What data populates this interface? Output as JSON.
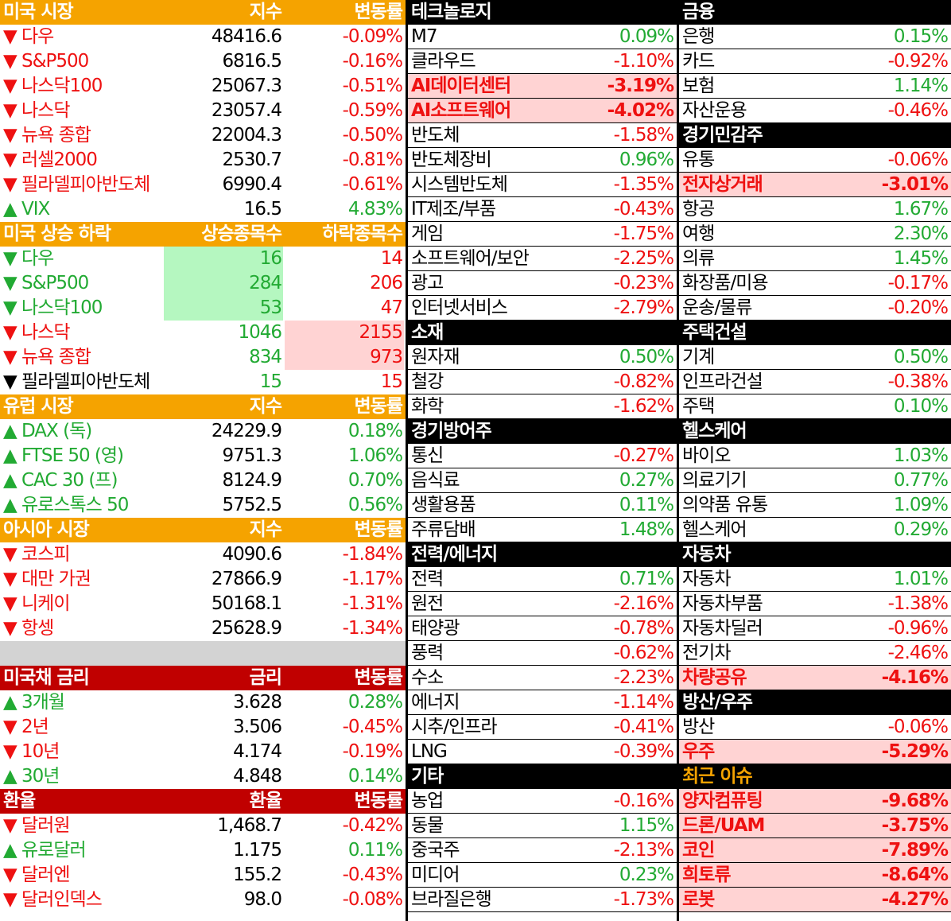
{
  "colors": {
    "up": "#22aa33",
    "down": "#ee1111",
    "orange_header": "#f5a300",
    "red_header": "#c00000",
    "highlight": "#ffd3d3",
    "green_cell": "#b5f7c0"
  },
  "left": [
    {
      "kind": "header",
      "style": "orange",
      "name": "미국 시장",
      "v1": "지수",
      "v2": "변동률"
    },
    {
      "kind": "row",
      "name": "▼ 다우",
      "v1": "48416.6",
      "v2": "-0.09%",
      "dir": "down"
    },
    {
      "kind": "row",
      "name": "▼ S&P500",
      "v1": "6816.5",
      "v2": "-0.16%",
      "dir": "down"
    },
    {
      "kind": "row",
      "name": "▼ 나스닥100",
      "v1": "25067.3",
      "v2": "-0.51%",
      "dir": "down"
    },
    {
      "kind": "row",
      "name": "▼ 나스닥",
      "v1": "23057.4",
      "v2": "-0.59%",
      "dir": "down"
    },
    {
      "kind": "row",
      "name": "▼ 뉴욕 종합",
      "v1": "22004.3",
      "v2": "-0.50%",
      "dir": "down"
    },
    {
      "kind": "row",
      "name": "▼ 러셀2000",
      "v1": "2530.7",
      "v2": "-0.81%",
      "dir": "down"
    },
    {
      "kind": "row",
      "name": "▼ 필라델피아반도체",
      "v1": "6990.4",
      "v2": "-0.61%",
      "dir": "down"
    },
    {
      "kind": "row",
      "name": "▲ VIX",
      "v1": "16.5",
      "v2": "4.83%",
      "dir": "up"
    },
    {
      "kind": "header",
      "style": "orange",
      "name": "미국 상승 하락",
      "v1": "상승종목수",
      "v2": "하락종목수"
    },
    {
      "kind": "breadth",
      "name": "▼ 다우",
      "v1": "16",
      "v2": "14",
      "dir": "up",
      "fill": "green"
    },
    {
      "kind": "breadth",
      "name": "▼ S&P500",
      "v1": "284",
      "v2": "206",
      "dir": "up",
      "fill": "green"
    },
    {
      "kind": "breadth",
      "name": "▼ 나스닥100",
      "v1": "53",
      "v2": "47",
      "dir": "up",
      "fill": "green"
    },
    {
      "kind": "breadth",
      "name": "▼ 나스닥",
      "v1": "1046",
      "v2": "2155",
      "dir": "down",
      "fill": "red"
    },
    {
      "kind": "breadth",
      "name": "▼ 뉴욕 종합",
      "v1": "834",
      "v2": "973",
      "dir": "down",
      "fill": "red"
    },
    {
      "kind": "breadth",
      "name": "▼ 필라델피아반도체",
      "v1": "15",
      "v2": "15",
      "dir": "flat",
      "fill": "none"
    },
    {
      "kind": "header",
      "style": "orange",
      "name": "유럽 시장",
      "v1": "지수",
      "v2": "변동률"
    },
    {
      "kind": "row",
      "name": "▲ DAX (독)",
      "v1": "24229.9",
      "v2": "0.18%",
      "dir": "up"
    },
    {
      "kind": "row",
      "name": "▲ FTSE 50 (영)",
      "v1": "9751.3",
      "v2": "1.06%",
      "dir": "up"
    },
    {
      "kind": "row",
      "name": "▲ CAC 30 (프)",
      "v1": "8124.9",
      "v2": "0.70%",
      "dir": "up"
    },
    {
      "kind": "row",
      "name": "▲ 유로스톡스 50",
      "v1": "5752.5",
      "v2": "0.56%",
      "dir": "up"
    },
    {
      "kind": "header",
      "style": "orange",
      "name": "아시아 시장",
      "v1": "지수",
      "v2": "변동률"
    },
    {
      "kind": "row",
      "name": "▼ 코스피",
      "v1": "4090.6",
      "v2": "-1.84%",
      "dir": "down"
    },
    {
      "kind": "row",
      "name": "▼ 대만 가권",
      "v1": "27866.9",
      "v2": "-1.17%",
      "dir": "down"
    },
    {
      "kind": "row",
      "name": "▼ 니케이",
      "v1": "50168.1",
      "v2": "-1.31%",
      "dir": "down"
    },
    {
      "kind": "row",
      "name": "▼ 항셍",
      "v1": "25628.9",
      "v2": "-1.34%",
      "dir": "down"
    },
    {
      "kind": "gray"
    },
    {
      "kind": "header",
      "style": "red",
      "name": "미국채 금리",
      "v1": "금리",
      "v2": "변동률"
    },
    {
      "kind": "row",
      "name": "▲ 3개월",
      "v1": "3.628",
      "v2": "0.28%",
      "dir": "up"
    },
    {
      "kind": "row",
      "name": "▼ 2년",
      "v1": "3.506",
      "v2": "-0.45%",
      "dir": "down"
    },
    {
      "kind": "row",
      "name": "▼ 10년",
      "v1": "4.174",
      "v2": "-0.19%",
      "dir": "down"
    },
    {
      "kind": "row",
      "name": "▲ 30년",
      "v1": "4.848",
      "v2": "0.14%",
      "dir": "up"
    },
    {
      "kind": "header",
      "style": "red",
      "name": "환율",
      "v1": "환율",
      "v2": "변동률"
    },
    {
      "kind": "row",
      "name": "▼ 달러원",
      "v1": "1,468.7",
      "v2": "-0.42%",
      "dir": "down"
    },
    {
      "kind": "row",
      "name": "▲ 유로달러",
      "v1": "1.175",
      "v2": "0.11%",
      "dir": "up"
    },
    {
      "kind": "row",
      "name": "▼ 달러엔",
      "v1": "155.2",
      "v2": "-0.43%",
      "dir": "down"
    },
    {
      "kind": "row",
      "name": "▼ 달러인덱스",
      "v1": "98.0",
      "v2": "-0.08%",
      "dir": "down"
    }
  ],
  "middle": [
    {
      "kind": "header",
      "style": "black",
      "name": "테크놀로지"
    },
    {
      "kind": "row",
      "name": "M7",
      "v2": "0.09%",
      "dir": "up"
    },
    {
      "kind": "row",
      "name": "클라우드",
      "v2": "-1.10%",
      "dir": "down"
    },
    {
      "kind": "row",
      "name": "AI데이터센터",
      "v2": "-3.19%",
      "dir": "down",
      "hl": true
    },
    {
      "kind": "row",
      "name": "AI소프트웨어",
      "v2": "-4.02%",
      "dir": "down",
      "hl": true
    },
    {
      "kind": "row",
      "name": "반도체",
      "v2": "-1.58%",
      "dir": "down"
    },
    {
      "kind": "row",
      "name": "반도체장비",
      "v2": "0.96%",
      "dir": "up"
    },
    {
      "kind": "row",
      "name": "시스템반도체",
      "v2": "-1.35%",
      "dir": "down"
    },
    {
      "kind": "row",
      "name": "IT제조/부품",
      "v2": "-0.43%",
      "dir": "down"
    },
    {
      "kind": "row",
      "name": "게임",
      "v2": "-1.75%",
      "dir": "down"
    },
    {
      "kind": "row",
      "name": "소프트웨어/보안",
      "v2": "-2.25%",
      "dir": "down"
    },
    {
      "kind": "row",
      "name": "광고",
      "v2": "-0.23%",
      "dir": "down"
    },
    {
      "kind": "row",
      "name": "인터넷서비스",
      "v2": "-2.79%",
      "dir": "down"
    },
    {
      "kind": "header",
      "style": "black",
      "name": "소재"
    },
    {
      "kind": "row",
      "name": "원자재",
      "v2": "0.50%",
      "dir": "up"
    },
    {
      "kind": "row",
      "name": "철강",
      "v2": "-0.82%",
      "dir": "down"
    },
    {
      "kind": "row",
      "name": "화학",
      "v2": "-1.62%",
      "dir": "down"
    },
    {
      "kind": "header",
      "style": "black",
      "name": "경기방어주"
    },
    {
      "kind": "row",
      "name": "통신",
      "v2": "-0.27%",
      "dir": "down"
    },
    {
      "kind": "row",
      "name": "음식료",
      "v2": "0.27%",
      "dir": "up"
    },
    {
      "kind": "row",
      "name": "생활용품",
      "v2": "0.11%",
      "dir": "up"
    },
    {
      "kind": "row",
      "name": "주류담배",
      "v2": "1.48%",
      "dir": "up"
    },
    {
      "kind": "header",
      "style": "black",
      "name": "전력/에너지"
    },
    {
      "kind": "row",
      "name": "전력",
      "v2": "0.71%",
      "dir": "up"
    },
    {
      "kind": "row",
      "name": "원전",
      "v2": "-2.16%",
      "dir": "down"
    },
    {
      "kind": "row",
      "name": "태양광",
      "v2": "-0.78%",
      "dir": "down"
    },
    {
      "kind": "row",
      "name": "풍력",
      "v2": "-0.62%",
      "dir": "down"
    },
    {
      "kind": "row",
      "name": "수소",
      "v2": "-2.23%",
      "dir": "down"
    },
    {
      "kind": "row",
      "name": "에너지",
      "v2": "-1.14%",
      "dir": "down"
    },
    {
      "kind": "row",
      "name": "시추/인프라",
      "v2": "-0.41%",
      "dir": "down"
    },
    {
      "kind": "row",
      "name": "LNG",
      "v2": "-0.39%",
      "dir": "down"
    },
    {
      "kind": "header",
      "style": "black",
      "name": "기타"
    },
    {
      "kind": "row",
      "name": "농업",
      "v2": "-0.16%",
      "dir": "down"
    },
    {
      "kind": "row",
      "name": "동물",
      "v2": "1.15%",
      "dir": "up"
    },
    {
      "kind": "row",
      "name": "중국주",
      "v2": "-2.13%",
      "dir": "down"
    },
    {
      "kind": "row",
      "name": "미디어",
      "v2": "0.23%",
      "dir": "up"
    },
    {
      "kind": "row",
      "name": "브라질은행",
      "v2": "-1.73%",
      "dir": "down"
    }
  ],
  "right": [
    {
      "kind": "header",
      "style": "black",
      "name": "금융"
    },
    {
      "kind": "row",
      "name": "은행",
      "v2": "0.15%",
      "dir": "up"
    },
    {
      "kind": "row",
      "name": "카드",
      "v2": "-0.92%",
      "dir": "down"
    },
    {
      "kind": "row",
      "name": "보험",
      "v2": "1.14%",
      "dir": "up"
    },
    {
      "kind": "row",
      "name": "자산운용",
      "v2": "-0.46%",
      "dir": "down"
    },
    {
      "kind": "header",
      "style": "black",
      "name": "경기민감주"
    },
    {
      "kind": "row",
      "name": "유통",
      "v2": "-0.06%",
      "dir": "down"
    },
    {
      "kind": "row",
      "name": "전자상거래",
      "v2": "-3.01%",
      "dir": "down",
      "hl": true
    },
    {
      "kind": "row",
      "name": "항공",
      "v2": "1.67%",
      "dir": "up"
    },
    {
      "kind": "row",
      "name": "여행",
      "v2": "2.30%",
      "dir": "up"
    },
    {
      "kind": "row",
      "name": "의류",
      "v2": "1.45%",
      "dir": "up"
    },
    {
      "kind": "row",
      "name": "화장품/미용",
      "v2": "-0.17%",
      "dir": "down"
    },
    {
      "kind": "row",
      "name": "운송/물류",
      "v2": "-0.20%",
      "dir": "down"
    },
    {
      "kind": "header",
      "style": "black",
      "name": "주택건설"
    },
    {
      "kind": "row",
      "name": "기계",
      "v2": "0.50%",
      "dir": "up"
    },
    {
      "kind": "row",
      "name": "인프라건설",
      "v2": "-0.38%",
      "dir": "down"
    },
    {
      "kind": "row",
      "name": "주택",
      "v2": "0.10%",
      "dir": "up"
    },
    {
      "kind": "header",
      "style": "black",
      "name": "헬스케어"
    },
    {
      "kind": "row",
      "name": "바이오",
      "v2": "1.03%",
      "dir": "up"
    },
    {
      "kind": "row",
      "name": "의료기기",
      "v2": "0.77%",
      "dir": "up"
    },
    {
      "kind": "row",
      "name": "의약품 유통",
      "v2": "1.09%",
      "dir": "up"
    },
    {
      "kind": "row",
      "name": "헬스케어",
      "v2": "0.29%",
      "dir": "up"
    },
    {
      "kind": "header",
      "style": "black",
      "name": "자동차"
    },
    {
      "kind": "row",
      "name": "자동차",
      "v2": "1.01%",
      "dir": "up"
    },
    {
      "kind": "row",
      "name": "자동차부품",
      "v2": "-1.38%",
      "dir": "down"
    },
    {
      "kind": "row",
      "name": "자동차딜러",
      "v2": "-0.96%",
      "dir": "down"
    },
    {
      "kind": "row",
      "name": "전기차",
      "v2": "-2.46%",
      "dir": "down"
    },
    {
      "kind": "row",
      "name": "차량공유",
      "v2": "-4.16%",
      "dir": "down",
      "hl": true
    },
    {
      "kind": "header",
      "style": "black",
      "name": "방산/우주"
    },
    {
      "kind": "row",
      "name": "방산",
      "v2": "-0.06%",
      "dir": "down"
    },
    {
      "kind": "row",
      "name": "우주",
      "v2": "-5.29%",
      "dir": "down",
      "hl": true
    },
    {
      "kind": "header",
      "style": "black-gold",
      "name": "최근 이슈"
    },
    {
      "kind": "row",
      "name": "양자컴퓨팅",
      "v2": "-9.68%",
      "dir": "down",
      "hl": true
    },
    {
      "kind": "row",
      "name": "드론/UAM",
      "v2": "-3.75%",
      "dir": "down",
      "hl": true
    },
    {
      "kind": "row",
      "name": "코인",
      "v2": "-7.89%",
      "dir": "down",
      "hl": true
    },
    {
      "kind": "row",
      "name": "희토류",
      "v2": "-8.64%",
      "dir": "down",
      "hl": true
    },
    {
      "kind": "row",
      "name": "로봇",
      "v2": "-4.27%",
      "dir": "down",
      "hl": true
    }
  ]
}
